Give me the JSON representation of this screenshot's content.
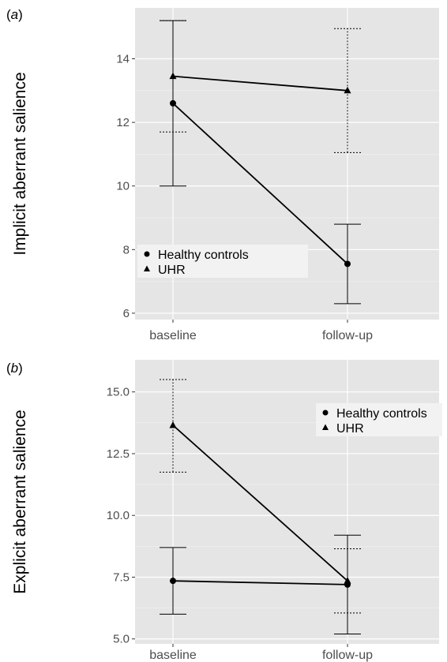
{
  "colors": {
    "panel_background": "#e5e5e5",
    "grid_major": "#ffffff",
    "grid_minor": "#f2f2f2",
    "series": "#000000",
    "legend_background": "#f2f2f2"
  },
  "chart_data": [
    {
      "type": "line",
      "panel_label": "(a)",
      "panel_letter": "a",
      "categories": [
        "baseline",
        "follow-up"
      ],
      "ylabel": "Implicit aberrant salience",
      "xlabel": "",
      "ylim": [
        5.8,
        15.6
      ],
      "yticks": [
        6,
        8,
        10,
        12,
        14
      ],
      "ytick_labels": [
        "6",
        "8",
        "10",
        "12",
        "14"
      ],
      "grid": true,
      "legend": {
        "placement": "inside-left"
      },
      "series": [
        {
          "name": "Healthy controls",
          "marker": "circle",
          "errorbar_style": "solid",
          "values": [
            12.6,
            7.55
          ],
          "lower": [
            10.0,
            6.3
          ],
          "upper": [
            15.2,
            8.8
          ]
        },
        {
          "name": "UHR",
          "marker": "triangle",
          "errorbar_style": "dotted",
          "values": [
            13.45,
            13.0
          ],
          "lower": [
            11.7,
            11.05
          ],
          "upper": [
            15.2,
            14.95
          ]
        }
      ]
    },
    {
      "type": "line",
      "panel_label": "(b)",
      "panel_letter": "b",
      "categories": [
        "baseline",
        "follow-up"
      ],
      "ylabel": "Explicit aberrant salience",
      "xlabel": "",
      "ylim": [
        4.8,
        16.3
      ],
      "yticks": [
        5.0,
        7.5,
        10.0,
        12.5,
        15.0
      ],
      "ytick_labels": [
        "5.0",
        "7.5",
        "10.0",
        "12.5",
        "15.0"
      ],
      "grid": true,
      "legend": {
        "placement": "top-right"
      },
      "series": [
        {
          "name": "Healthy controls",
          "marker": "circle",
          "errorbar_style": "solid",
          "values": [
            7.35,
            7.2
          ],
          "lower": [
            6.0,
            5.2
          ],
          "upper": [
            8.7,
            9.2
          ]
        },
        {
          "name": "UHR",
          "marker": "triangle",
          "errorbar_style": "dotted",
          "values": [
            13.65,
            7.35
          ],
          "lower": [
            11.75,
            6.05
          ],
          "upper": [
            15.5,
            8.65
          ]
        }
      ]
    }
  ]
}
